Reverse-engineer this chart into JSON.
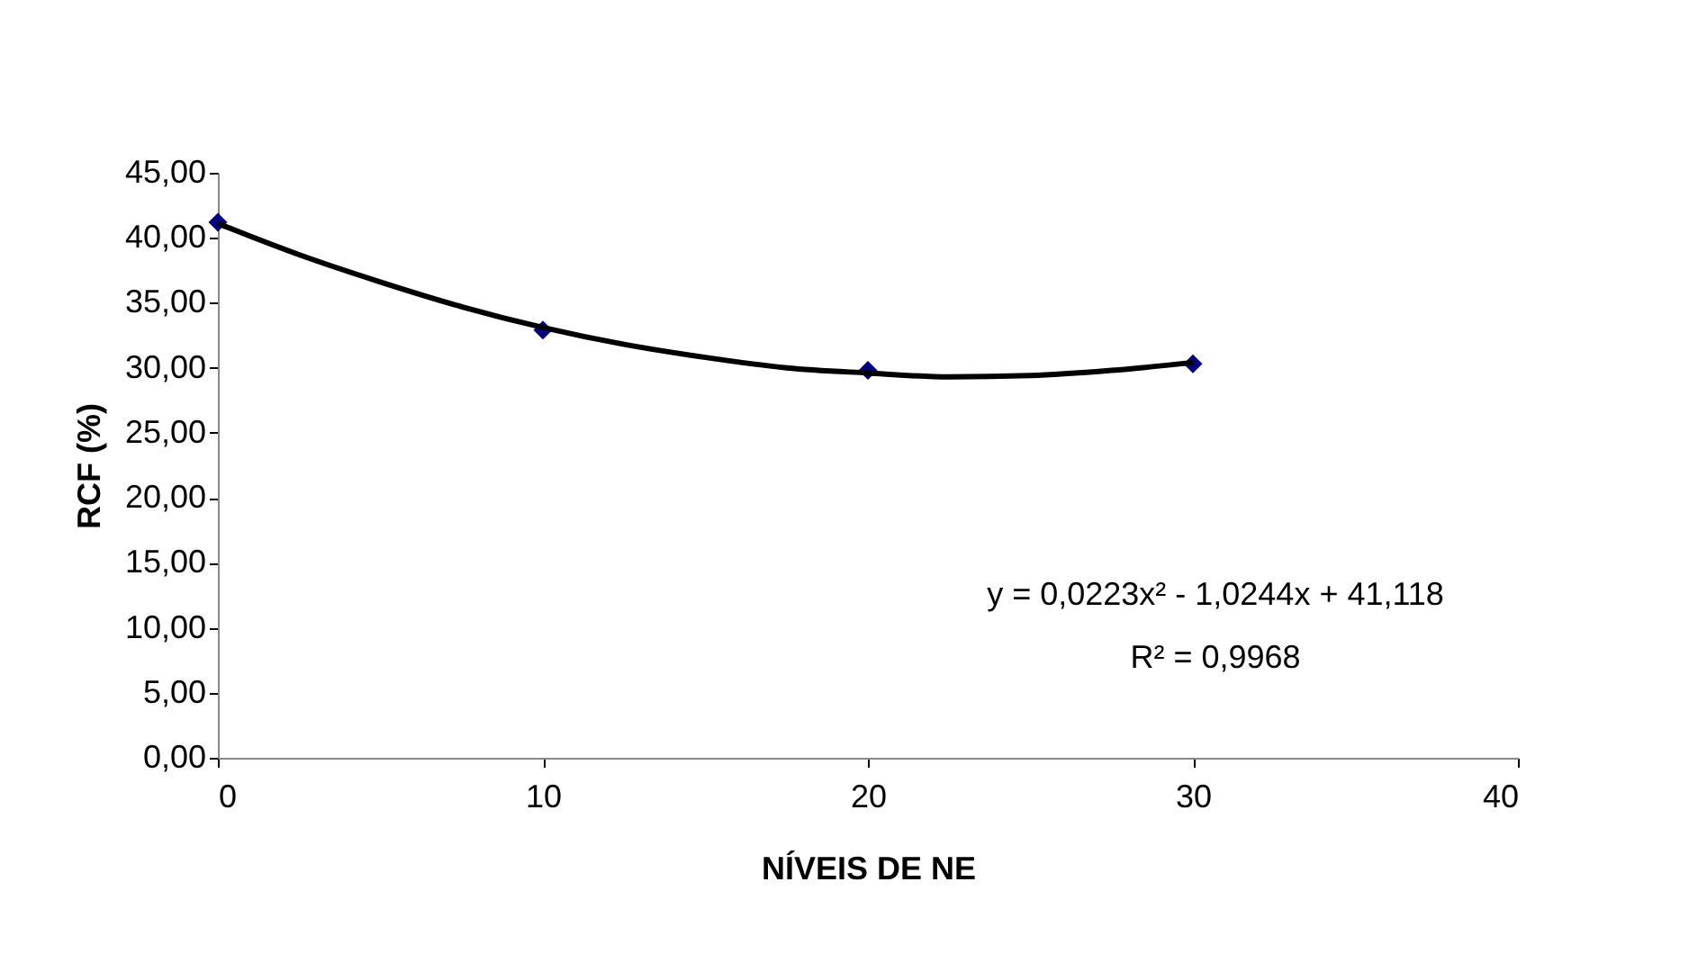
{
  "chart_data": {
    "type": "scatter",
    "xlabel": "NÍVEIS DE NE",
    "ylabel": "RCF (%)",
    "xlim": [
      0,
      40
    ],
    "xticks": [
      0,
      10,
      20,
      30,
      40
    ],
    "ylim": [
      0,
      45
    ],
    "yticks": [
      {
        "value": 0,
        "label": "0,00"
      },
      {
        "value": 5,
        "label": "5,00"
      },
      {
        "value": 10,
        "label": "10,00"
      },
      {
        "value": 15,
        "label": "15,00"
      },
      {
        "value": 20,
        "label": "20,00"
      },
      {
        "value": 25,
        "label": "25,00"
      },
      {
        "value": 30,
        "label": "30,00"
      },
      {
        "value": 35,
        "label": "35,00"
      },
      {
        "value": 40,
        "label": "40,00"
      },
      {
        "value": 45,
        "label": "45,00"
      }
    ],
    "grid": false,
    "series": [
      {
        "color": "#000080",
        "marker": "diamond",
        "x": [
          0,
          10,
          20,
          30
        ],
        "values": [
          41.2,
          32.9,
          29.8,
          30.3
        ]
      },
      {
        "type": "line",
        "color": "#000000",
        "marker": "none",
        "line_style": "solid",
        "x": [
          0,
          2.5,
          5,
          7.5,
          10,
          12.5,
          15,
          17.5,
          20,
          22.5,
          25,
          27.5,
          30
        ],
        "values": [
          41.1,
          38.7,
          36.6,
          34.7,
          33.1,
          31.8,
          30.8,
          30.0,
          29.6,
          29.3,
          29.4,
          29.8,
          30.4
        ]
      }
    ],
    "annotations": [
      "y = 0,0223x² - 1,0244x + 41,118",
      "R² = 0,9968"
    ]
  }
}
